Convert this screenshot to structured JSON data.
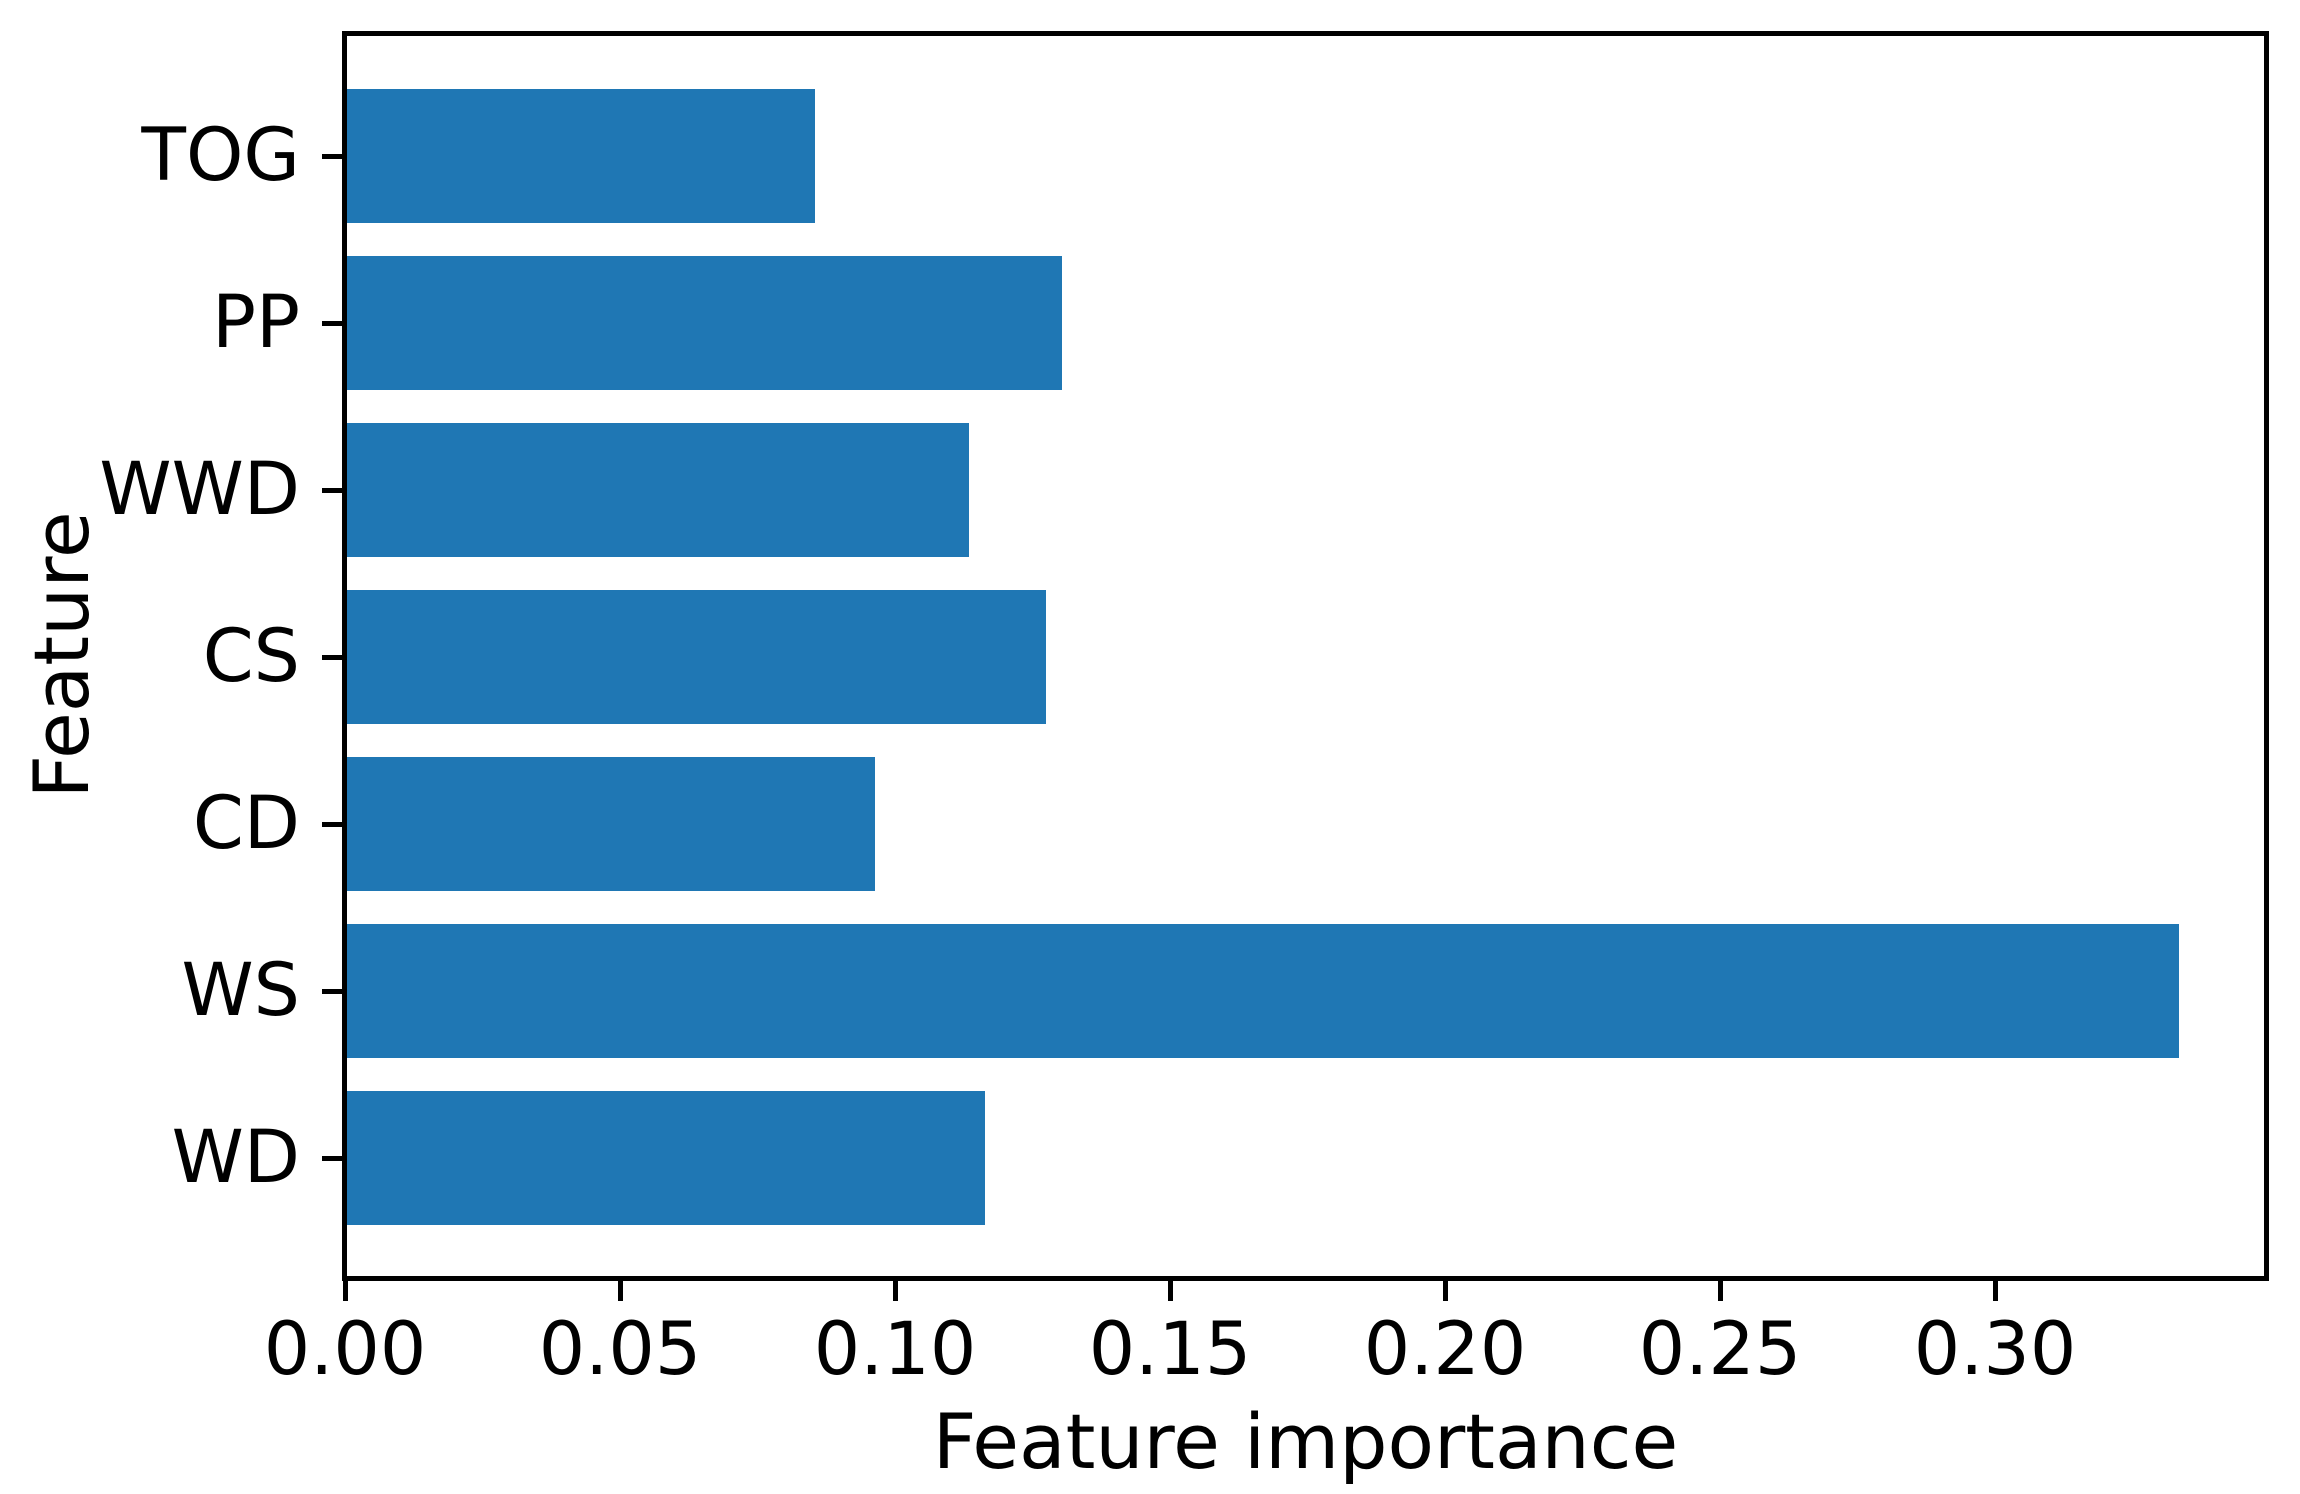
{
  "chart_data": {
    "type": "bar",
    "orientation": "horizontal",
    "title": "",
    "xlabel": "Feature importance",
    "ylabel": "Feature",
    "categories_top_to_bottom": [
      "TOG",
      "PP",
      "WWD",
      "CS",
      "CD",
      "WS",
      "WD"
    ],
    "values": [
      0.085,
      0.13,
      0.113,
      0.127,
      0.096,
      0.333,
      0.116
    ],
    "xlim": [
      0,
      0.349
    ],
    "xticks": [
      0,
      0.05,
      0.1,
      0.15,
      0.2,
      0.25,
      0.3
    ],
    "xtick_labels": [
      "0.00",
      "0.05",
      "0.10",
      "0.15",
      "0.20",
      "0.25",
      "0.30"
    ],
    "bar_color": "#1f77b4",
    "axis_color": "#000000",
    "background_color": "#ffffff",
    "grid": false,
    "legend": null
  }
}
